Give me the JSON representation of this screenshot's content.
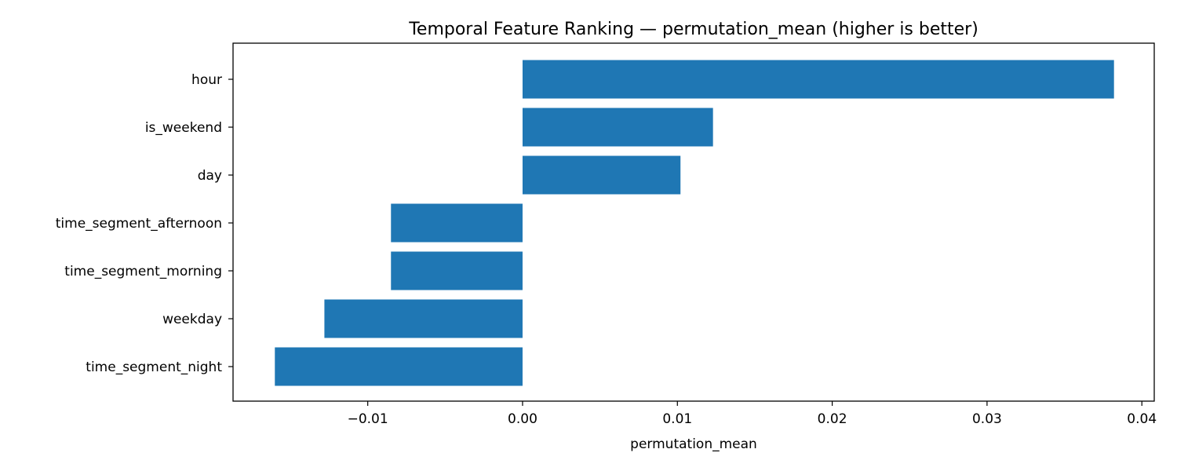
{
  "chart_data": {
    "type": "bar",
    "orientation": "horizontal",
    "title": "Temporal Feature Ranking — permutation_mean (higher is better)",
    "xlabel": "permutation_mean",
    "ylabel": "",
    "xlim": [
      -0.0187,
      0.0408
    ],
    "grid": false,
    "bar_color": "#1f77b4",
    "categories": [
      "hour",
      "is_weekend",
      "day",
      "time_segment_afternoon",
      "time_segment_morning",
      "weekday",
      "time_segment_night"
    ],
    "values": [
      0.0382,
      0.0123,
      0.0102,
      -0.0085,
      -0.0085,
      -0.0128,
      -0.016
    ],
    "xticks": [
      -0.01,
      0.0,
      0.01,
      0.02,
      0.03,
      0.04
    ],
    "xtick_labels": [
      "−0.01",
      "0.00",
      "0.01",
      "0.02",
      "0.03",
      "0.04"
    ]
  }
}
